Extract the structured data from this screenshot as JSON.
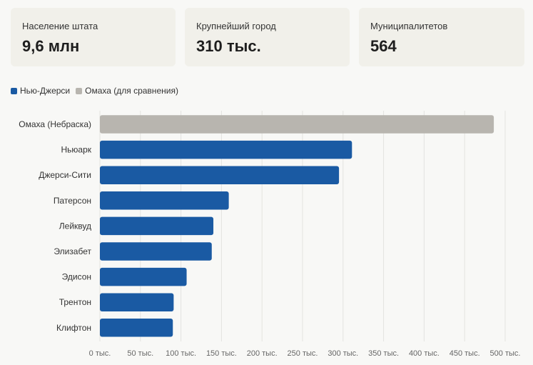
{
  "kpis": [
    {
      "label": "Население штата",
      "value": "9,6 млн"
    },
    {
      "label": "Крупнейший город",
      "value": "310 тыс."
    },
    {
      "label": "Муниципалитетов",
      "value": "564"
    }
  ],
  "colors": {
    "primary": "#1a5aa3",
    "compare": "#b8b5af",
    "grid": "#e3e3e0"
  },
  "chart_data": {
    "type": "bar",
    "orientation": "horizontal",
    "legend": [
      {
        "name": "Нью-Джерси",
        "color": "#1a5aa3"
      },
      {
        "name": "Омаха (для сравнения)",
        "color": "#b8b5af"
      }
    ],
    "categories": [
      "Омаха (Небраска)",
      "Ньюарк",
      "Джерси-Сити",
      "Патерсон",
      "Лейквуд",
      "Элизабет",
      "Эдисон",
      "Трентон",
      "Клифтон"
    ],
    "values": [
      486,
      311,
      295,
      159,
      140,
      138,
      107,
      91,
      90
    ],
    "series_of": [
      "Омаха (для сравнения)",
      "Нью-Джерси",
      "Нью-Джерси",
      "Нью-Джерси",
      "Нью-Джерси",
      "Нью-Джерси",
      "Нью-Джерси",
      "Нью-Джерси",
      "Нью-Джерси"
    ],
    "xlim": [
      0,
      500
    ],
    "x_ticks": [
      0,
      50,
      100,
      150,
      200,
      250,
      300,
      350,
      400,
      450,
      500
    ],
    "tick_suffix": " тыс.",
    "grid": true,
    "legend_position": "top-left"
  }
}
